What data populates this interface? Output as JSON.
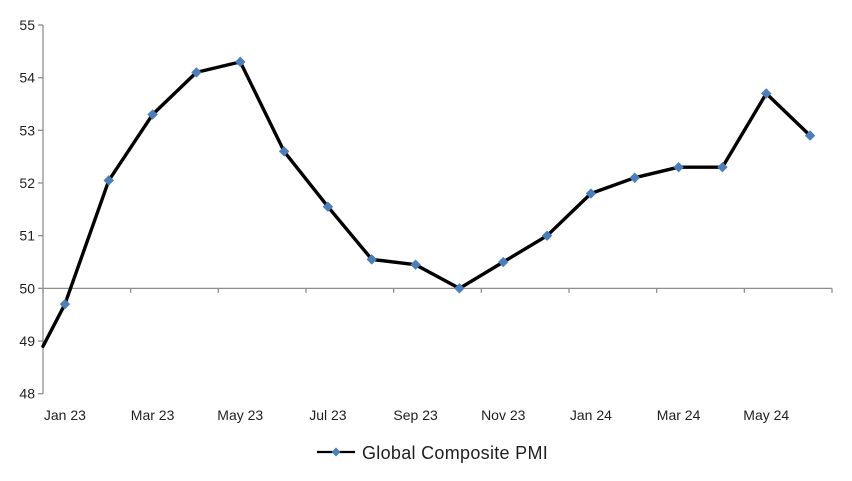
{
  "chart_data": {
    "type": "line",
    "title": "",
    "legend": {
      "label": "Global Composite PMI",
      "position": "bottom",
      "marker": "diamond"
    },
    "categories": [
      "Jan 23",
      "Feb 23",
      "Mar 23",
      "Apr 23",
      "May 23",
      "Jun 23",
      "Jul 23",
      "Aug 23",
      "Sep 23",
      "Oct 23",
      "Nov 23",
      "Dec 23",
      "Jan 24",
      "Feb 24",
      "Mar 24",
      "Apr 24",
      "May 24",
      "Jun 24"
    ],
    "series": [
      {
        "name": "Global Composite PMI",
        "values": [
          49.7,
          52.05,
          53.3,
          54.1,
          54.3,
          52.6,
          51.55,
          50.55,
          50.45,
          50.0,
          50.5,
          51.0,
          51.8,
          52.1,
          52.3,
          52.3,
          53.7,
          52.9
        ]
      }
    ],
    "lead_in_value_at_left_edge": 48.9,
    "ylim": [
      48,
      55
    ],
    "y_ticks": [
      55,
      54,
      53,
      52,
      51,
      50,
      49,
      48
    ],
    "x_tick_labels": [
      "Jan 23",
      "Mar 23",
      "May 23",
      "Jul 23",
      "Sep 23",
      "Nov 23",
      "Jan 24",
      "Mar 24",
      "May 24"
    ],
    "x_label_category_indices": [
      0,
      2,
      4,
      6,
      8,
      10,
      12,
      14,
      16
    ],
    "x_axis_cross_value": 50,
    "grid": "none",
    "colors": {
      "line": "#000000",
      "marker": "#4a7ebc",
      "axis": "#8e8e8e",
      "text": "#1f1f1f"
    }
  }
}
